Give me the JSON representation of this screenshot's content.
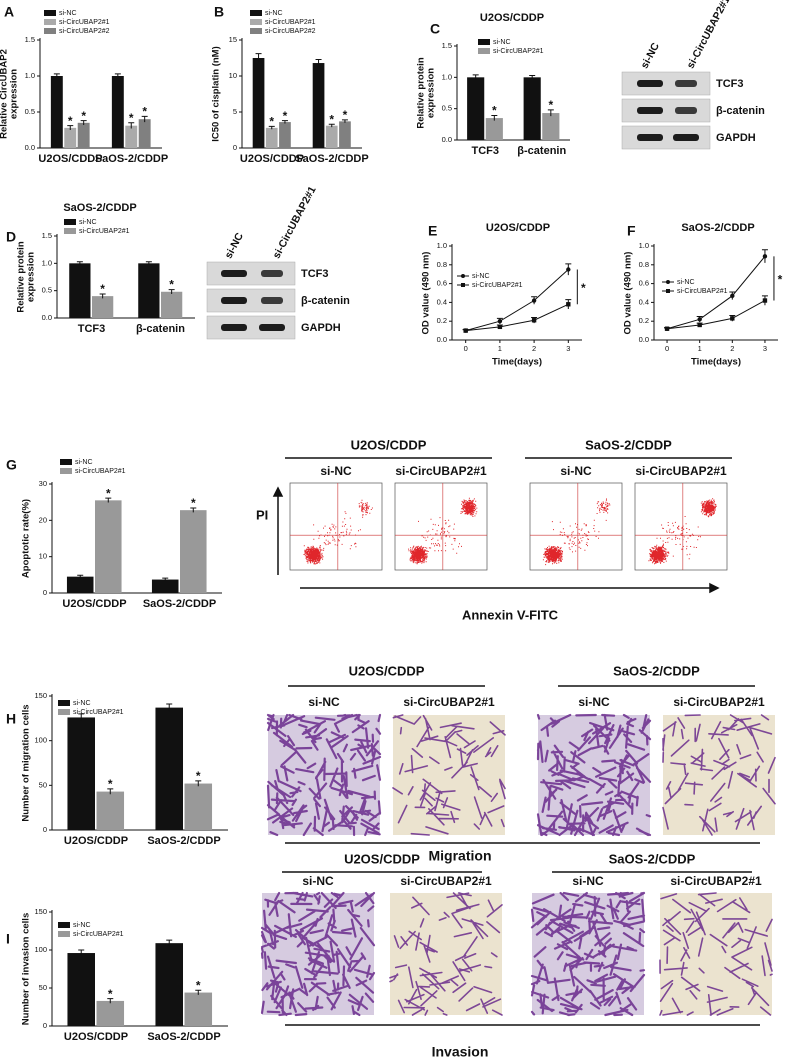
{
  "chart_data": [
    {
      "type": "bar",
      "panel": "A",
      "ylabel": [
        "Relative CircUBAP2",
        "expression"
      ],
      "categories": [
        "U2OS/CDDP",
        "SaOS-2/CDDP"
      ],
      "series": [
        {
          "name": "si-NC",
          "color": "#111111",
          "values": [
            1.0,
            1.0
          ],
          "errors": [
            0.03,
            0.03
          ]
        },
        {
          "name": "si-CircUBAP2#1",
          "color": "#aaaaaa",
          "values": [
            0.28,
            0.31
          ],
          "errors": [
            0.03,
            0.04
          ]
        },
        {
          "name": "si-CircUBAP2#2",
          "color": "#808080",
          "values": [
            0.35,
            0.4
          ],
          "errors": [
            0.03,
            0.04
          ]
        }
      ],
      "ylim": [
        0,
        1.5
      ],
      "yticks": [
        {
          "value": 0,
          "label": "0.0"
        },
        {
          "value": 0.5,
          "label": "0.5"
        },
        {
          "value": 1,
          "label": "1.0"
        },
        {
          "value": 1.5,
          "label": "1.5"
        }
      ],
      "significance_marker": "*"
    },
    {
      "type": "bar",
      "panel": "B",
      "ylabel": [
        "IC50 of cisplatin (nM)"
      ],
      "categories": [
        "U2OS/CDDP",
        "SaOS-2/CDDP"
      ],
      "series": [
        {
          "name": "si-NC",
          "color": "#111111",
          "values": [
            12.5,
            11.8
          ],
          "errors": [
            0.6,
            0.5
          ]
        },
        {
          "name": "si-CircUBAP2#1",
          "color": "#aaaaaa",
          "values": [
            2.8,
            3.1
          ],
          "errors": [
            0.2,
            0.2
          ]
        },
        {
          "name": "si-CircUBAP2#2",
          "color": "#808080",
          "values": [
            3.6,
            3.7
          ],
          "errors": [
            0.2,
            0.2
          ]
        }
      ],
      "ylim": [
        0,
        15
      ],
      "yticks": [
        0,
        5,
        10,
        15
      ],
      "significance_marker": "*"
    },
    {
      "type": "bar",
      "panel": "C",
      "title": "U2OS/CDDP",
      "ylabel": [
        "Relative protein",
        "expression"
      ],
      "categories": [
        "TCF3",
        "β-catenin"
      ],
      "series": [
        {
          "name": "si-NC",
          "color": "#111111",
          "values": [
            1.0,
            1.0
          ],
          "errors": [
            0.04,
            0.03
          ]
        },
        {
          "name": "si-CircUBAP2#1",
          "color": "#999999",
          "values": [
            0.35,
            0.43
          ],
          "errors": [
            0.04,
            0.05
          ]
        }
      ],
      "ylim": [
        0,
        1.5
      ],
      "yticks": [
        {
          "value": 0,
          "label": "0.0"
        },
        {
          "value": 0.5,
          "label": "0.5"
        },
        {
          "value": 1,
          "label": "1.0"
        },
        {
          "value": 1.5,
          "label": "1.5"
        }
      ],
      "significance_marker": "*"
    },
    {
      "type": "bar",
      "panel": "D",
      "title": "SaOS-2/CDDP",
      "ylabel": [
        "Relative protein",
        "expression"
      ],
      "categories": [
        "TCF3",
        "β-catenin"
      ],
      "series": [
        {
          "name": "si-NC",
          "color": "#111111",
          "values": [
            1.0,
            1.0
          ],
          "errors": [
            0.03,
            0.03
          ]
        },
        {
          "name": "si-CircUBAP2#1",
          "color": "#999999",
          "values": [
            0.4,
            0.48
          ],
          "errors": [
            0.04,
            0.04
          ]
        }
      ],
      "ylim": [
        0,
        1.5
      ],
      "yticks": [
        {
          "value": 0,
          "label": "0.0"
        },
        {
          "value": 0.5,
          "label": "0.5"
        },
        {
          "value": 1,
          "label": "1.0"
        },
        {
          "value": 1.5,
          "label": "1.5"
        }
      ],
      "significance_marker": "*"
    },
    {
      "type": "line",
      "panel": "E",
      "title": "U2OS/CDDP",
      "ylabel": [
        "OD value (490 nm)"
      ],
      "xlabel": "Time(days)",
      "x": [
        0,
        1,
        2,
        3
      ],
      "series": [
        {
          "name": "si-NC",
          "color": "#111111",
          "marker": "circle",
          "values": [
            0.1,
            0.2,
            0.42,
            0.75
          ],
          "errors": [
            0.01,
            0.03,
            0.04,
            0.06
          ]
        },
        {
          "name": "si-CircUBAP2#1",
          "color": "#111111",
          "marker": "square",
          "values": [
            0.1,
            0.14,
            0.21,
            0.38
          ],
          "errors": [
            0.01,
            0.02,
            0.03,
            0.05
          ]
        }
      ],
      "xlim": [
        -0.4,
        3.4
      ],
      "xticks": [
        0,
        1,
        2,
        3
      ],
      "ylim": [
        0,
        1.0
      ],
      "yticks": [
        {
          "value": 0,
          "label": "0.0"
        },
        {
          "value": 0.2,
          "label": "0.2"
        },
        {
          "value": 0.4,
          "label": "0.4"
        },
        {
          "value": 0.6,
          "label": "0.6"
        },
        {
          "value": 0.8,
          "label": "0.8"
        },
        {
          "value": 1,
          "label": "1.0"
        }
      ],
      "significance_marker": "*"
    },
    {
      "type": "line",
      "panel": "F",
      "title": "SaOS-2/CDDP",
      "ylabel": [
        "OD value (490 nm)"
      ],
      "xlabel": "Time(days)",
      "x": [
        0,
        1,
        2,
        3
      ],
      "series": [
        {
          "name": "si-NC",
          "color": "#111111",
          "marker": "circle",
          "values": [
            0.12,
            0.22,
            0.47,
            0.89
          ],
          "errors": [
            0.01,
            0.03,
            0.04,
            0.07
          ]
        },
        {
          "name": "si-CircUBAP2#1",
          "color": "#111111",
          "marker": "square",
          "values": [
            0.12,
            0.16,
            0.23,
            0.42
          ],
          "errors": [
            0.01,
            0.02,
            0.03,
            0.05
          ]
        }
      ],
      "xlim": [
        -0.4,
        3.4
      ],
      "xticks": [
        0,
        1,
        2,
        3
      ],
      "ylim": [
        0,
        1.0
      ],
      "yticks": [
        {
          "value": 0,
          "label": "0.0"
        },
        {
          "value": 0.2,
          "label": "0.2"
        },
        {
          "value": 0.4,
          "label": "0.4"
        },
        {
          "value": 0.6,
          "label": "0.6"
        },
        {
          "value": 0.8,
          "label": "0.8"
        },
        {
          "value": 1,
          "label": "1.0"
        }
      ],
      "significance_marker": "*"
    },
    {
      "type": "bar",
      "panel": "G",
      "ylabel": [
        "Apoptotic rate(%)"
      ],
      "categories": [
        "U2OS/CDDP",
        "SaOS-2/CDDP"
      ],
      "series": [
        {
          "name": "si-NC",
          "color": "#111111",
          "values": [
            4.5,
            3.7
          ],
          "errors": [
            0.4,
            0.4
          ]
        },
        {
          "name": "si-CircUBAP2#1",
          "color": "#999999",
          "values": [
            25.5,
            22.8
          ],
          "errors": [
            0.6,
            0.6
          ]
        }
      ],
      "ylim": [
        0,
        30
      ],
      "yticks": [
        0,
        10,
        20,
        30
      ],
      "significance_marker": "*"
    },
    {
      "type": "bar",
      "panel": "H",
      "ylabel": [
        "Number of migration cells"
      ],
      "categories": [
        "U2OS/CDDP",
        "SaOS-2/CDDP"
      ],
      "series": [
        {
          "name": "si-NC",
          "color": "#111111",
          "values": [
            126,
            137
          ],
          "errors": [
            4,
            4
          ]
        },
        {
          "name": "si-CircUBAP2#1",
          "color": "#999999",
          "values": [
            43,
            52
          ],
          "errors": [
            3,
            3
          ]
        }
      ],
      "ylim": [
        0,
        150
      ],
      "yticks": [
        0,
        50,
        100,
        150
      ],
      "significance_marker": "*"
    },
    {
      "type": "bar",
      "panel": "I",
      "ylabel": [
        "Number of invasion cells"
      ],
      "categories": [
        "U2OS/CDDP",
        "SaOS-2/CDDP"
      ],
      "series": [
        {
          "name": "si-NC",
          "color": "#111111",
          "values": [
            96,
            109
          ],
          "errors": [
            4,
            4
          ]
        },
        {
          "name": "si-CircUBAP2#1",
          "color": "#999999",
          "values": [
            33,
            44
          ],
          "errors": [
            3,
            3
          ]
        }
      ],
      "ylim": [
        0,
        150
      ],
      "yticks": [
        0,
        50,
        100,
        150
      ],
      "significance_marker": "*"
    }
  ],
  "blots": [
    {
      "lanes": [
        "si-NC",
        "si-CircUBAP2#1"
      ],
      "rows": [
        "TCF3",
        "β-catenin",
        "GAPDH"
      ]
    },
    {
      "lanes": [
        "si-NC",
        "si-CircUBAP2#1"
      ],
      "rows": [
        "TCF3",
        "β-catenin",
        "GAPDH"
      ]
    }
  ],
  "flow_cytometry": {
    "groups": [
      {
        "title": "U2OS/CDDP",
        "lanes": [
          "si-NC",
          "si-CircUBAP2#1"
        ]
      },
      {
        "title": "SaOS-2/CDDP",
        "lanes": [
          "si-NC",
          "si-CircUBAP2#1"
        ]
      }
    ],
    "y_axis": "PI",
    "x_axis": "Annexin V-FITC"
  },
  "migration": {
    "groups": [
      {
        "title": "U2OS/CDDP",
        "lanes": [
          "si-NC",
          "si-CircUBAP2#1"
        ]
      },
      {
        "title": "SaOS-2/CDDP",
        "lanes": [
          "si-NC",
          "si-CircUBAP2#1"
        ]
      }
    ],
    "caption": "Migration"
  },
  "invasion": {
    "groups": [
      {
        "title": "U2OS/CDDP",
        "lanes": [
          "si-NC",
          "si-CircUBAP2#1"
        ]
      },
      {
        "title": "SaOS-2/CDDP",
        "lanes": [
          "si-NC",
          "si-CircUBAP2#1"
        ]
      }
    ],
    "caption": "Invasion"
  }
}
